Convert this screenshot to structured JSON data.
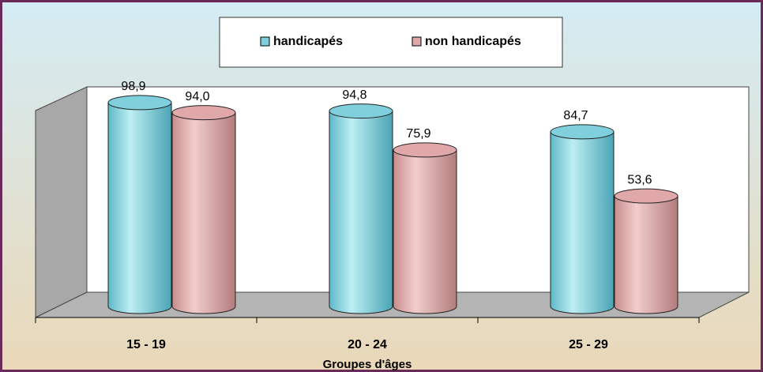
{
  "chart_data": {
    "type": "bar",
    "x_label": "Groupes d'âges",
    "categories": [
      "15 - 19",
      "20 - 24",
      "25 - 29"
    ],
    "series": [
      {
        "name": "handicapés",
        "color": "#7fd0dc",
        "values": [
          98.9,
          94.8,
          84.7
        ],
        "value_labels": [
          "98,9",
          "94,8",
          "84,7"
        ]
      },
      {
        "name": "non handicapés",
        "color": "#e0a8a8",
        "values": [
          94.0,
          75.9,
          53.6
        ],
        "value_labels": [
          "94,0",
          "75,9",
          "53,6"
        ]
      }
    ],
    "ylim": [
      0,
      100
    ],
    "legend": "top"
  }
}
